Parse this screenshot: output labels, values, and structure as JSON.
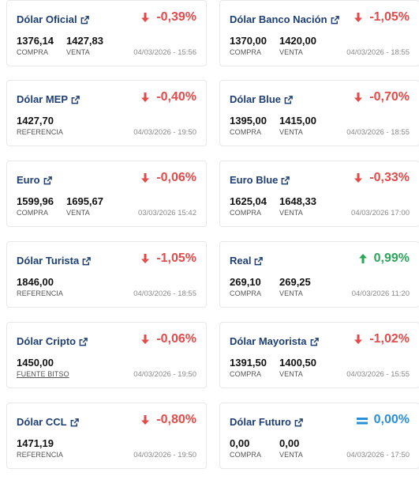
{
  "cards": [
    {
      "title": "Dólar Oficial",
      "change": "-0,39%",
      "dir": "down",
      "values": [
        "1376,14",
        "1427,83"
      ],
      "labels": [
        "COMPRA",
        "VENTA"
      ],
      "date": "04/03/2026 - 15:56"
    },
    {
      "title": "Dólar Banco Nación",
      "change": "-1,05%",
      "dir": "down",
      "values": [
        "1370,00",
        "1420,00"
      ],
      "labels": [
        "COMPRA",
        "VENTA"
      ],
      "date": "04/03/2026 - 18:55"
    },
    {
      "title": "Dólar MEP",
      "change": "-0,40%",
      "dir": "down",
      "values": [
        "1427,70"
      ],
      "labels": [
        "REFERENCIA"
      ],
      "date": "04/03/2026 - 19:50"
    },
    {
      "title": "Dólar Blue",
      "change": "-0,70%",
      "dir": "down",
      "values": [
        "1395,00",
        "1415,00"
      ],
      "labels": [
        "COMPRA",
        "VENTA"
      ],
      "date": "04/03/2026 - 18:55"
    },
    {
      "title": "Euro",
      "change": "-0,06%",
      "dir": "down",
      "values": [
        "1599,96",
        "1695,67"
      ],
      "labels": [
        "COMPRA",
        "VENTA"
      ],
      "date": "03/03/2026 15:42"
    },
    {
      "title": "Euro Blue",
      "change": "-0,33%",
      "dir": "down",
      "values": [
        "1625,04",
        "1648,33"
      ],
      "labels": [
        "COMPRA",
        "VENTA"
      ],
      "date": "04/03/2026 17:00"
    },
    {
      "title": "Dólar Turista",
      "change": "-1,05%",
      "dir": "down",
      "values": [
        "1846,00"
      ],
      "labels": [
        "REFERENCIA"
      ],
      "date": "04/03/2026 - 18:55"
    },
    {
      "title": "Real",
      "change": "0,99%",
      "dir": "up",
      "values": [
        "269,10",
        "269,25"
      ],
      "labels": [
        "COMPRA",
        "VENTA"
      ],
      "date": "04/03/2026 11:20"
    },
    {
      "title": "Dólar Cripto",
      "change": "-0,06%",
      "dir": "down",
      "values": [
        "1450,00"
      ],
      "labels": [
        "FUENTE BITSO"
      ],
      "date": "04/03/2026 - 19:50"
    },
    {
      "title": "Dólar Mayorista",
      "change": "-1,02%",
      "dir": "down",
      "values": [
        "1391,50",
        "1400,50"
      ],
      "labels": [
        "COMPRA",
        "VENTA"
      ],
      "date": "04/03/2026 - 15:55"
    },
    {
      "title": "Dólar CCL",
      "change": "-0,80%",
      "dir": "down",
      "values": [
        "1471,19"
      ],
      "labels": [
        "REFERENCIA"
      ],
      "date": "04/03/2026 - 19:50"
    },
    {
      "title": "Dólar Futuro",
      "change": "0,00%",
      "dir": "eq",
      "values": [
        "0,00",
        "0,00"
      ],
      "labels": [
        "COMPRA",
        "VENTA"
      ],
      "date": "04/03/2026 - 17:50"
    }
  ],
  "icons": {
    "external": "external-link-icon",
    "down": "arrow-down-icon",
    "up": "arrow-up-icon",
    "eq": "equals-icon"
  },
  "colors": {
    "title": "#1d3f73",
    "down": "#e34a4a",
    "up": "#2aa55a",
    "eq": "#2a8fd8"
  }
}
